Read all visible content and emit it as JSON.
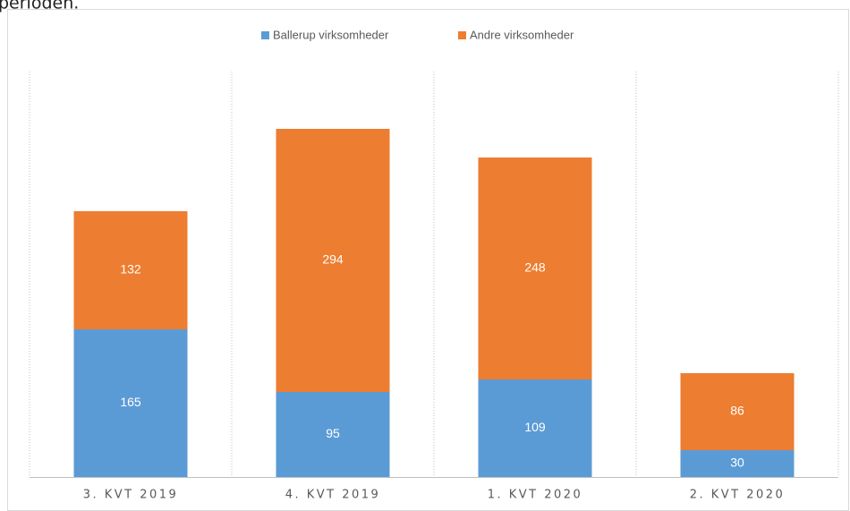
{
  "page_text": "perioden.",
  "chart_data": {
    "type": "stacked-bar",
    "categories": [
      "3. KVT 2019",
      "4. KVT 2019",
      "1. KVT 2020",
      "2. KVT 2020"
    ],
    "series": [
      {
        "name": "Ballerup virksomheder",
        "color": "#5b9bd5",
        "values": [
          165,
          95,
          109,
          30
        ]
      },
      {
        "name": "Andre virksomheder",
        "color": "#ed7d31",
        "values": [
          132,
          294,
          248,
          86
        ]
      }
    ],
    "ylim": [
      0,
      450
    ],
    "legend": "top"
  }
}
